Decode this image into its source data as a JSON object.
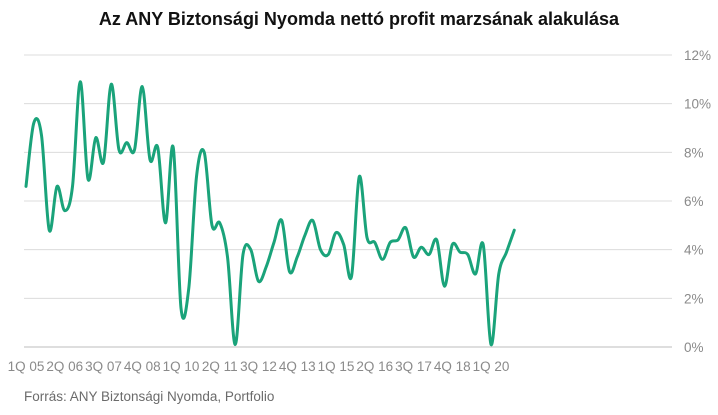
{
  "chart_data": {
    "type": "line",
    "title": "Az ANY Biztonsági Nyomda nettó profit marzsának alakulása",
    "xlabel": "",
    "ylabel": "",
    "x_tick_labels": [
      "1Q 05",
      "2Q 06",
      "3Q 07",
      "4Q 08",
      "1Q 10",
      "2Q 11",
      "3Q 12",
      "4Q 13",
      "1Q 15",
      "2Q 16",
      "3Q 17",
      "4Q 18",
      "1Q 20"
    ],
    "y_tick_labels": [
      "0%",
      "2%",
      "4%",
      "6%",
      "8%",
      "10%",
      "12%"
    ],
    "ylim": [
      0,
      12
    ],
    "grid": true,
    "legend": "none",
    "series": [
      {
        "color": "#1aa37a",
        "x": [
          "1Q 05",
          "2Q 05",
          "3Q 05",
          "4Q 05",
          "1Q 06",
          "2Q 06",
          "3Q 06",
          "4Q 06",
          "1Q 07",
          "2Q 07",
          "3Q 07",
          "4Q 07",
          "1Q 08",
          "2Q 08",
          "3Q 08",
          "4Q 08",
          "1Q 09",
          "2Q 09",
          "3Q 09",
          "4Q 09",
          "1Q 10",
          "2Q 10",
          "3Q 10",
          "4Q 10",
          "1Q 11",
          "2Q 11",
          "3Q 11",
          "4Q 11",
          "1Q 12",
          "2Q 12",
          "3Q 12",
          "4Q 12",
          "1Q 13",
          "2Q 13",
          "3Q 13",
          "4Q 13",
          "1Q 14",
          "2Q 14",
          "3Q 14",
          "4Q 14",
          "1Q 15",
          "2Q 15",
          "3Q 15",
          "4Q 15",
          "1Q 16",
          "2Q 16",
          "3Q 16",
          "4Q 16",
          "1Q 17",
          "2Q 17",
          "3Q 17",
          "4Q 17",
          "1Q 18",
          "2Q 18",
          "3Q 18",
          "4Q 18",
          "1Q 19",
          "2Q 19",
          "3Q 19",
          "4Q 19",
          "1Q 20",
          "2Q 20",
          "3Q 20",
          "4Q 20"
        ],
        "values": [
          6.6,
          9.2,
          8.7,
          4.8,
          6.6,
          5.6,
          6.6,
          10.9,
          6.9,
          8.6,
          7.6,
          10.8,
          8.1,
          8.4,
          8.1,
          10.7,
          7.7,
          8.2,
          5.1,
          8.2,
          1.6,
          2.4,
          7.0,
          8.0,
          5.0,
          5.1,
          3.7,
          0.1,
          3.8,
          4.0,
          2.7,
          3.3,
          4.3,
          5.2,
          3.1,
          3.7,
          4.6,
          5.2,
          4.0,
          3.8,
          4.7,
          4.2,
          2.9,
          7.0,
          4.5,
          4.3,
          3.6,
          4.3,
          4.4,
          4.9,
          3.7,
          4.1,
          3.8,
          4.4,
          2.5,
          4.2,
          3.9,
          3.8,
          3.0,
          4.2,
          0.1,
          3.0,
          3.9,
          4.8
        ]
      }
    ]
  },
  "source": "Forrás: ANY Biztonsági Nyomda, Portfolio"
}
